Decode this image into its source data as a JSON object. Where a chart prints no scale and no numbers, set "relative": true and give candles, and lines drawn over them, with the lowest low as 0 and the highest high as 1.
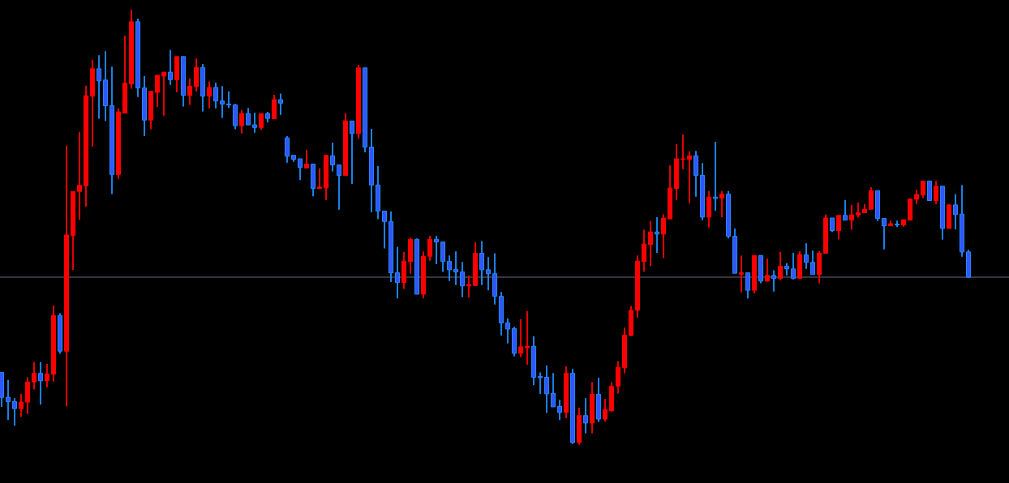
{
  "chart_data": {
    "type": "candlestick",
    "relative": true,
    "categories": [
      null,
      null,
      null,
      null,
      null,
      null,
      null,
      null,
      null,
      null,
      null,
      null,
      null,
      null,
      null,
      null,
      null,
      null,
      null,
      null,
      null,
      null,
      null,
      null,
      null,
      null,
      null,
      null,
      null,
      null,
      null,
      null,
      null,
      null,
      null,
      null,
      null,
      null,
      null,
      null,
      null,
      null,
      null,
      null,
      null,
      null,
      null,
      null,
      null,
      null,
      null,
      null,
      null,
      null,
      null,
      null,
      null,
      null,
      null,
      null,
      null,
      null,
      null,
      null,
      null,
      null,
      null,
      null,
      null,
      null,
      null,
      null,
      null,
      null,
      null,
      null,
      null,
      null,
      null,
      null,
      null,
      null,
      null,
      null,
      null,
      null,
      null,
      null,
      null,
      null,
      null,
      null,
      null,
      null,
      null,
      null,
      null,
      null,
      null,
      null,
      null,
      null,
      null,
      null,
      null,
      null,
      null,
      null,
      null,
      null,
      null,
      null,
      null,
      null,
      null,
      null,
      null,
      null,
      null,
      null,
      null,
      null,
      null,
      null,
      null,
      null,
      null,
      null,
      null,
      null,
      null,
      null,
      null,
      null,
      null,
      null,
      null,
      null,
      null,
      null,
      null,
      null,
      null,
      null,
      null,
      null,
      null,
      null,
      null,
      null
    ],
    "ohlc": [
      [
        0.166,
        0.166,
        0.087,
        0.109
      ],
      [
        0.109,
        0.149,
        0.057,
        0.099
      ],
      [
        0.099,
        0.107,
        0.044,
        0.083
      ],
      [
        0.083,
        0.117,
        0.064,
        0.098
      ],
      [
        0.098,
        0.155,
        0.071,
        0.144
      ],
      [
        0.144,
        0.19,
        0.127,
        0.164
      ],
      [
        0.164,
        0.19,
        0.092,
        0.147
      ],
      [
        0.147,
        0.186,
        0.132,
        0.163
      ],
      [
        0.162,
        0.32,
        0.145,
        0.297
      ],
      [
        0.297,
        0.302,
        0.209,
        0.215
      ],
      [
        0.215,
        0.687,
        0.088,
        0.482
      ],
      [
        0.481,
        0.582,
        0.402,
        0.582
      ],
      [
        0.582,
        0.719,
        0.517,
        0.596
      ],
      [
        0.595,
        0.825,
        0.547,
        0.802
      ],
      [
        0.801,
        0.884,
        0.685,
        0.864
      ],
      [
        0.864,
        0.895,
        0.749,
        0.836
      ],
      [
        0.838,
        0.904,
        0.744,
        0.779
      ],
      [
        0.779,
        0.869,
        0.576,
        0.621
      ],
      [
        0.621,
        0.773,
        0.611,
        0.765
      ],
      [
        0.762,
        0.94,
        0.762,
        0.831
      ],
      [
        0.829,
        1.0,
        0.818,
        0.972
      ],
      [
        0.972,
        0.979,
        0.799,
        0.82
      ],
      [
        0.82,
        0.847,
        0.709,
        0.746
      ],
      [
        0.746,
        0.812,
        0.725,
        0.812
      ],
      [
        0.81,
        0.849,
        0.776,
        0.849
      ],
      [
        0.847,
        0.856,
        0.756,
        0.856
      ],
      [
        0.856,
        0.907,
        0.827,
        0.839
      ],
      [
        0.839,
        0.892,
        0.81,
        0.892
      ],
      [
        0.892,
        0.892,
        0.777,
        0.803
      ],
      [
        0.803,
        0.842,
        0.781,
        0.824
      ],
      [
        0.823,
        0.888,
        0.812,
        0.867
      ],
      [
        0.867,
        0.875,
        0.766,
        0.801
      ],
      [
        0.801,
        0.835,
        0.773,
        0.821
      ],
      [
        0.821,
        0.832,
        0.773,
        0.79
      ],
      [
        0.79,
        0.824,
        0.751,
        0.783
      ],
      [
        0.783,
        0.812,
        0.774,
        0.781
      ],
      [
        0.781,
        0.783,
        0.725,
        0.733
      ],
      [
        0.733,
        0.769,
        0.715,
        0.761
      ],
      [
        0.761,
        0.774,
        0.735,
        0.735
      ],
      [
        0.735,
        0.763,
        0.717,
        0.729
      ],
      [
        0.729,
        0.761,
        0.724,
        0.761
      ],
      [
        0.761,
        0.765,
        0.741,
        0.75
      ],
      [
        0.749,
        0.804,
        0.748,
        0.793
      ],
      [
        0.793,
        0.807,
        0.758,
        0.785
      ],
      [
        0.705,
        0.709,
        0.648,
        0.663
      ],
      [
        0.665,
        0.665,
        0.65,
        0.656
      ],
      [
        0.657,
        0.657,
        0.608,
        0.637
      ],
      [
        0.636,
        0.678,
        0.636,
        0.645
      ],
      [
        0.645,
        0.645,
        0.571,
        0.589
      ],
      [
        0.589,
        0.635,
        0.589,
        0.592
      ],
      [
        0.59,
        0.666,
        0.562,
        0.665
      ],
      [
        0.664,
        0.694,
        0.628,
        0.643
      ],
      [
        0.643,
        0.643,
        0.54,
        0.619
      ],
      [
        0.619,
        0.762,
        0.619,
        0.744
      ],
      [
        0.744,
        0.744,
        0.599,
        0.715
      ],
      [
        0.715,
        0.873,
        0.703,
        0.866
      ],
      [
        0.866,
        0.866,
        0.672,
        0.684
      ],
      [
        0.684,
        0.726,
        0.534,
        0.597
      ],
      [
        0.597,
        0.64,
        0.518,
        0.537
      ],
      [
        0.537,
        0.537,
        0.451,
        0.513
      ],
      [
        0.513,
        0.536,
        0.374,
        0.395
      ],
      [
        0.395,
        0.455,
        0.336,
        0.373
      ],
      [
        0.373,
        0.443,
        0.358,
        0.422
      ],
      [
        0.421,
        0.476,
        0.393,
        0.472
      ],
      [
        0.472,
        0.474,
        0.346,
        0.346
      ],
      [
        0.346,
        0.444,
        0.336,
        0.433
      ],
      [
        0.433,
        0.48,
        0.423,
        0.472
      ],
      [
        0.472,
        0.48,
        0.415,
        0.466
      ],
      [
        0.466,
        0.466,
        0.397,
        0.421
      ],
      [
        0.421,
        0.435,
        0.376,
        0.402
      ],
      [
        0.403,
        0.444,
        0.367,
        0.397
      ],
      [
        0.397,
        0.42,
        0.339,
        0.365
      ],
      [
        0.365,
        0.389,
        0.338,
        0.368
      ],
      [
        0.366,
        0.465,
        0.365,
        0.44
      ],
      [
        0.44,
        0.468,
        0.367,
        0.402
      ],
      [
        0.402,
        0.431,
        0.355,
        0.393
      ],
      [
        0.393,
        0.44,
        0.322,
        0.341
      ],
      [
        0.341,
        0.351,
        0.251,
        0.28
      ],
      [
        0.28,
        0.29,
        0.233,
        0.266
      ],
      [
        0.267,
        0.271,
        0.203,
        0.21
      ],
      [
        0.21,
        0.288,
        0.201,
        0.225
      ],
      [
        0.223,
        0.307,
        0.184,
        0.226
      ],
      [
        0.226,
        0.249,
        0.137,
        0.155
      ],
      [
        0.157,
        0.166,
        0.117,
        0.154
      ],
      [
        0.155,
        0.182,
        0.073,
        0.117
      ],
      [
        0.118,
        0.165,
        0.087,
        0.087
      ],
      [
        0.088,
        0.103,
        0.057,
        0.074
      ],
      [
        0.074,
        0.18,
        0.061,
        0.164
      ],
      [
        0.164,
        0.174,
        0.002,
        0.005
      ],
      [
        0.005,
        0.085,
        0.0,
        0.067
      ],
      [
        0.067,
        0.107,
        0.026,
        0.05
      ],
      [
        0.05,
        0.144,
        0.026,
        0.116
      ],
      [
        0.116,
        0.154,
        0.052,
        0.059
      ],
      [
        0.059,
        0.105,
        0.053,
        0.081
      ],
      [
        0.078,
        0.144,
        0.076,
        0.134
      ],
      [
        0.134,
        0.192,
        0.118,
        0.178
      ],
      [
        0.177,
        0.269,
        0.164,
        0.252
      ],
      [
        0.251,
        0.319,
        0.249,
        0.309
      ],
      [
        0.309,
        0.435,
        0.292,
        0.422
      ],
      [
        0.421,
        0.494,
        0.398,
        0.461
      ],
      [
        0.46,
        0.514,
        0.41,
        0.489
      ],
      [
        0.489,
        0.523,
        0.441,
        0.484
      ],
      [
        0.484,
        0.53,
        0.429,
        0.521
      ],
      [
        0.519,
        0.642,
        0.519,
        0.59
      ],
      [
        0.589,
        0.691,
        0.562,
        0.657
      ],
      [
        0.656,
        0.713,
        0.633,
        0.657
      ],
      [
        0.656,
        0.674,
        0.555,
        0.664
      ],
      [
        0.664,
        0.675,
        0.57,
        0.619
      ],
      [
        0.619,
        0.647,
        0.516,
        0.523
      ],
      [
        0.523,
        0.583,
        0.499,
        0.569
      ],
      [
        0.569,
        0.696,
        0.538,
        0.566
      ],
      [
        0.567,
        0.583,
        0.523,
        0.576
      ],
      [
        0.576,
        0.583,
        0.474,
        0.479
      ],
      [
        0.479,
        0.497,
        0.394,
        0.394
      ],
      [
        0.392,
        0.435,
        0.35,
        0.395
      ],
      [
        0.395,
        0.395,
        0.336,
        0.355
      ],
      [
        0.355,
        0.435,
        0.348,
        0.435
      ],
      [
        0.435,
        0.435,
        0.371,
        0.376
      ],
      [
        0.376,
        0.428,
        0.375,
        0.389
      ],
      [
        0.389,
        0.401,
        0.352,
        0.382
      ],
      [
        0.382,
        0.443,
        0.378,
        0.41
      ],
      [
        0.41,
        0.417,
        0.389,
        0.404
      ],
      [
        0.404,
        0.441,
        0.38,
        0.382
      ],
      [
        0.382,
        0.445,
        0.382,
        0.437
      ],
      [
        0.436,
        0.463,
        0.404,
        0.419
      ],
      [
        0.419,
        0.446,
        0.391,
        0.391
      ],
      [
        0.391,
        0.445,
        0.371,
        0.44
      ],
      [
        0.44,
        0.529,
        0.44,
        0.521
      ],
      [
        0.521,
        0.521,
        0.489,
        0.492
      ],
      [
        0.492,
        0.527,
        0.472,
        0.527
      ],
      [
        0.527,
        0.562,
        0.516,
        0.516
      ],
      [
        0.516,
        0.551,
        0.494,
        0.528
      ],
      [
        0.528,
        0.557,
        0.522,
        0.533
      ],
      [
        0.533,
        0.553,
        0.533,
        0.541
      ],
      [
        0.541,
        0.592,
        0.541,
        0.584
      ],
      [
        0.584,
        0.584,
        0.514,
        0.52
      ],
      [
        0.52,
        0.52,
        0.449,
        0.503
      ],
      [
        0.503,
        0.515,
        0.503,
        0.508
      ],
      [
        0.507,
        0.515,
        0.5,
        0.505
      ],
      [
        0.505,
        0.517,
        0.501,
        0.517
      ],
      [
        0.516,
        0.565,
        0.516,
        0.565
      ],
      [
        0.564,
        0.586,
        0.553,
        0.575
      ],
      [
        0.574,
        0.606,
        0.567,
        0.606
      ],
      [
        0.606,
        0.606,
        0.561,
        0.561
      ],
      [
        0.561,
        0.606,
        0.553,
        0.594
      ],
      [
        0.594,
        0.594,
        0.471,
        0.497
      ],
      [
        0.497,
        0.552,
        0.497,
        0.551
      ],
      [
        0.551,
        0.576,
        0.495,
        0.529
      ],
      [
        0.53,
        0.597,
        0.432,
        0.443
      ],
      [
        0.443,
        0.448,
        0.383,
        0.385
      ]
    ],
    "ref_lines": [
      {
        "axis": "y",
        "value": 0.385,
        "color": "#6e6a80"
      }
    ]
  }
}
